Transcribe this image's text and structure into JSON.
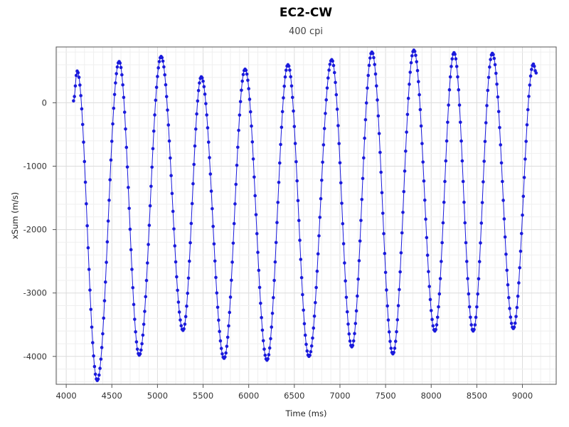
{
  "chart_data": {
    "type": "scatter",
    "title": "EC2-CW",
    "subtitle": "400 cpi",
    "xlabel": "Time (ms)",
    "ylabel": "xSum (m/s)",
    "xlim": [
      3890,
      9370
    ],
    "ylim": [
      -4440,
      880
    ],
    "xticks": [
      4000,
      4500,
      5000,
      5500,
      6000,
      6500,
      7000,
      7500,
      8000,
      8500,
      9000
    ],
    "yticks": [
      0,
      -1000,
      -2000,
      -3000,
      -4000
    ],
    "grid": true,
    "series": [
      {
        "color": "#1a1adc",
        "style": "markers+line",
        "t_start": 4080,
        "t_end": 9150,
        "extrema": [
          [
            4080,
            30
          ],
          [
            4120,
            500
          ],
          [
            4340,
            -4380
          ],
          [
            4580,
            650
          ],
          [
            4800,
            -3980
          ],
          [
            5040,
            730
          ],
          [
            5280,
            -3590
          ],
          [
            5480,
            410
          ],
          [
            5730,
            -4030
          ],
          [
            5960,
            530
          ],
          [
            6200,
            -4060
          ],
          [
            6430,
            600
          ],
          [
            6660,
            -4000
          ],
          [
            6910,
            680
          ],
          [
            7130,
            -3850
          ],
          [
            7350,
            800
          ],
          [
            7580,
            -3960
          ],
          [
            7810,
            830
          ],
          [
            8040,
            -3600
          ],
          [
            8250,
            790
          ],
          [
            8460,
            -3600
          ],
          [
            8670,
            780
          ],
          [
            8900,
            -3560
          ],
          [
            9120,
            610
          ],
          [
            9150,
            470
          ]
        ]
      }
    ]
  }
}
